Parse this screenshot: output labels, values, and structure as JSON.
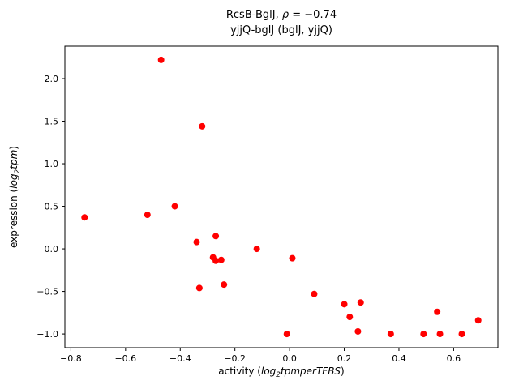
{
  "chart_data": {
    "type": "scatter",
    "title": {
      "line1_pre": "RcsB-BglJ, ",
      "line1_rho": "ρ",
      "line1_post": " = −0.74",
      "line2": "yjjQ-bglJ (bglJ, yjjQ)"
    },
    "xlabel": {
      "prefix": "activity (",
      "math_log": "log",
      "sub": "2",
      "math_rest": "tpmperTFBS",
      "suffix": ")"
    },
    "ylabel": {
      "prefix": "expression (",
      "math_log": "log",
      "sub": "2",
      "math_rest": "tpm",
      "suffix": ")"
    },
    "xlim": [
      -0.822,
      0.762
    ],
    "ylim": [
      -1.161,
      2.381
    ],
    "xticks": [
      {
        "value": -0.8,
        "label": "−0.8"
      },
      {
        "value": -0.6,
        "label": "−0.6"
      },
      {
        "value": -0.4,
        "label": "−0.4"
      },
      {
        "value": -0.2,
        "label": "−0.2"
      },
      {
        "value": 0.0,
        "label": "0.0"
      },
      {
        "value": 0.2,
        "label": "0.2"
      },
      {
        "value": 0.4,
        "label": "0.4"
      },
      {
        "value": 0.6,
        "label": "0.6"
      }
    ],
    "yticks": [
      {
        "value": -1.0,
        "label": "−1.0"
      },
      {
        "value": -0.5,
        "label": "−0.5"
      },
      {
        "value": 0.0,
        "label": "0.0"
      },
      {
        "value": 0.5,
        "label": "0.5"
      },
      {
        "value": 1.0,
        "label": "1.0"
      },
      {
        "value": 1.5,
        "label": "1.5"
      },
      {
        "value": 2.0,
        "label": "2.0"
      }
    ],
    "marker_color": "#ff0000",
    "points": [
      [
        -0.75,
        0.37
      ],
      [
        -0.52,
        0.4
      ],
      [
        -0.47,
        2.22
      ],
      [
        -0.42,
        0.5
      ],
      [
        -0.34,
        0.08
      ],
      [
        -0.33,
        -0.46
      ],
      [
        -0.32,
        1.44
      ],
      [
        -0.28,
        -0.1
      ],
      [
        -0.27,
        0.15
      ],
      [
        -0.27,
        -0.14
      ],
      [
        -0.25,
        -0.13
      ],
      [
        -0.24,
        -0.42
      ],
      [
        -0.12,
        0.0
      ],
      [
        -0.01,
        -1.0
      ],
      [
        0.01,
        -0.11
      ],
      [
        0.09,
        -0.53
      ],
      [
        0.2,
        -0.65
      ],
      [
        0.22,
        -0.8
      ],
      [
        0.25,
        -0.97
      ],
      [
        0.26,
        -0.63
      ],
      [
        0.37,
        -1.0
      ],
      [
        0.49,
        -1.0
      ],
      [
        0.54,
        -0.74
      ],
      [
        0.55,
        -1.0
      ],
      [
        0.63,
        -1.0
      ],
      [
        0.69,
        -0.84
      ]
    ]
  }
}
